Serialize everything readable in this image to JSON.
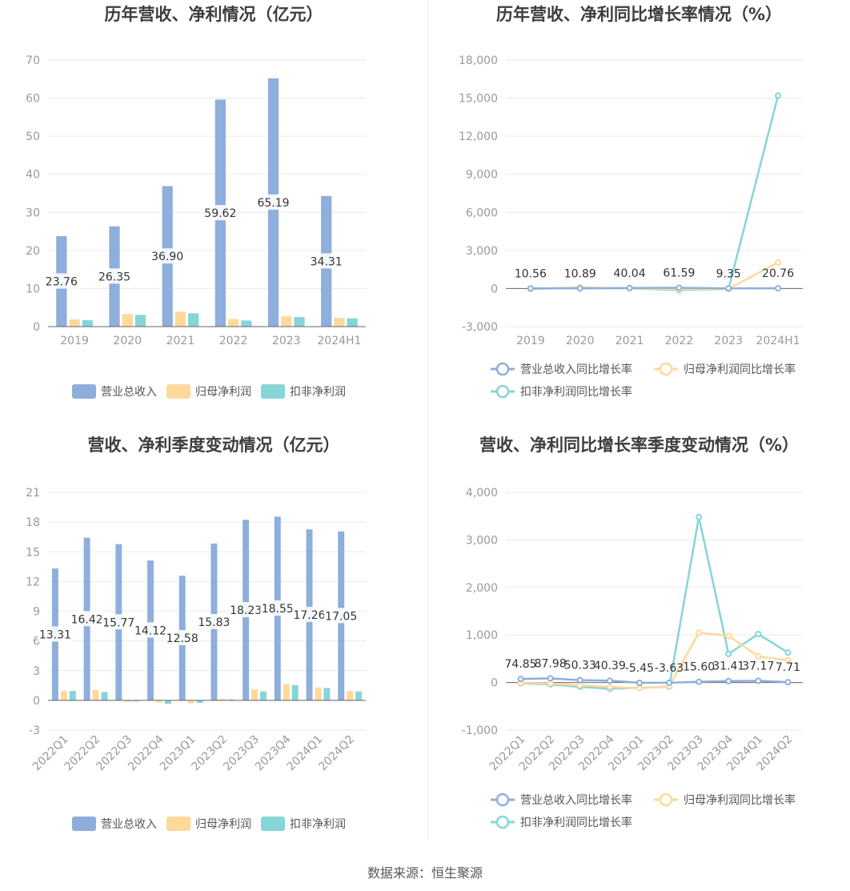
{
  "source": "数据来源：恒生聚源",
  "legend_labels": {
    "revenue": "营业总收入",
    "net_profit": "归母净利润",
    "deducted_profit": "扣非净利润",
    "revenue_growth": "营业总收入同比增长率",
    "net_profit_growth": "归母净利润同比增长率",
    "deducted_profit_growth": "扣非净利润同比增长率"
  },
  "colors": {
    "revenue": "#8eaedc",
    "net_profit": "#ffd99a",
    "deducted_profit": "#86d5d8",
    "revenue_line": "#8eaedc",
    "net_profit_line": "#ffd99a",
    "deducted_line": "#86d5d8"
  },
  "chart_data": [
    {
      "id": "annual-bar",
      "type": "bar",
      "title": "历年营收、净利情况（亿元）",
      "categories": [
        "2019",
        "2020",
        "2021",
        "2022",
        "2023",
        "2024H1"
      ],
      "ylim": [
        0,
        70
      ],
      "yticks": [
        0,
        10,
        20,
        30,
        40,
        50,
        60,
        70
      ],
      "ytick_labels": [
        "0",
        "10",
        "20",
        "30",
        "40",
        "50",
        "60",
        "70"
      ],
      "series": [
        {
          "name": "营业总收入",
          "values": [
            23.76,
            26.35,
            36.9,
            59.62,
            65.19,
            34.31
          ],
          "labels": [
            "23.76",
            "26.35",
            "36.90",
            "59.62",
            "65.19",
            "34.31"
          ]
        },
        {
          "name": "归母净利润",
          "values": [
            1.9,
            3.3,
            3.9,
            2.0,
            2.7,
            2.3
          ]
        },
        {
          "name": "扣非净利润",
          "values": [
            1.7,
            3.1,
            3.5,
            1.6,
            2.5,
            2.2
          ]
        }
      ],
      "legend": "bottom"
    },
    {
      "id": "annual-line",
      "type": "line",
      "title": "历年营收、净利同比增长率情况（%）",
      "categories": [
        "2019",
        "2020",
        "2021",
        "2022",
        "2023",
        "2024H1"
      ],
      "ylim": [
        -3000,
        18000
      ],
      "yticks": [
        -3000,
        0,
        3000,
        6000,
        9000,
        12000,
        15000,
        18000
      ],
      "ytick_labels": [
        "-3,000",
        "0",
        "3,000",
        "6,000",
        "9,000",
        "12,000",
        "15,000",
        "18,000"
      ],
      "series": [
        {
          "name": "营业总收入同比增长率",
          "values": [
            10.56,
            10.89,
            40.04,
            61.59,
            9.35,
            20.76
          ],
          "labels": [
            "10.56",
            "10.89",
            "40.04",
            "61.59",
            "9.35",
            "20.76"
          ]
        },
        {
          "name": "归母净利润同比增长率",
          "values": [
            -20,
            60,
            20,
            -50,
            -20,
            2050
          ]
        },
        {
          "name": "扣非净利润同比增长率",
          "values": [
            -30,
            80,
            10,
            -120,
            -30,
            15200
          ]
        }
      ],
      "legend": "bottom"
    },
    {
      "id": "quarter-bar",
      "type": "bar",
      "title": "营收、净利季度变动情况（亿元）",
      "categories": [
        "2022Q1",
        "2022Q2",
        "2022Q3",
        "2022Q4",
        "2023Q1",
        "2023Q2",
        "2023Q3",
        "2023Q4",
        "2024Q1",
        "2024Q2"
      ],
      "ylim": [
        -3,
        21
      ],
      "yticks": [
        -3,
        0,
        3,
        6,
        9,
        12,
        15,
        18,
        21
      ],
      "ytick_labels": [
        "-3",
        "0",
        "3",
        "6",
        "9",
        "12",
        "15",
        "18",
        "21"
      ],
      "series": [
        {
          "name": "营业总收入",
          "values": [
            13.31,
            16.42,
            15.77,
            14.12,
            12.58,
            15.83,
            18.23,
            18.55,
            17.26,
            17.05
          ],
          "labels": [
            "13.31",
            "16.42",
            "15.77",
            "14.12",
            "12.58",
            "15.83",
            "18.23",
            "18.55",
            "17.26",
            "17.05"
          ]
        },
        {
          "name": "归母净利润",
          "values": [
            0.95,
            1.05,
            -0.15,
            -0.2,
            -0.3,
            0.15,
            1.1,
            1.65,
            1.3,
            0.95
          ]
        },
        {
          "name": "扣非净利润",
          "values": [
            0.95,
            0.85,
            -0.1,
            -0.35,
            -0.25,
            0.1,
            0.9,
            1.55,
            1.25,
            0.9
          ]
        }
      ],
      "legend": "bottom"
    },
    {
      "id": "quarter-line",
      "type": "line",
      "title": "营收、净利同比增长率季度变动情况（%）",
      "categories": [
        "2022Q1",
        "2022Q2",
        "2022Q3",
        "2022Q4",
        "2023Q1",
        "2023Q2",
        "2023Q3",
        "2023Q4",
        "2024Q1",
        "2024Q2"
      ],
      "ylim": [
        -1000,
        4000
      ],
      "yticks": [
        -1000,
        0,
        1000,
        2000,
        3000,
        4000
      ],
      "ytick_labels": [
        "-1,000",
        "0",
        "1,000",
        "2,000",
        "3,000",
        "4,000"
      ],
      "series": [
        {
          "name": "营业总收入同比增长率",
          "values": [
            74.85,
            87.98,
            50.33,
            40.39,
            -5.45,
            -3.63,
            15.6,
            31.41,
            37.17,
            7.71
          ],
          "labels": [
            "74.85",
            "87.98",
            "50.33",
            "40.39",
            "-5.45",
            "-3.63",
            "15.60",
            "31.41",
            "37.17",
            "7.71"
          ]
        },
        {
          "name": "归母净利润同比增长率",
          "values": [
            -10,
            -20,
            -60,
            -90,
            -120,
            -80,
            1050,
            980,
            550,
            470
          ]
        },
        {
          "name": "扣非净利润同比增长率",
          "values": [
            -20,
            -40,
            -90,
            -130,
            -110,
            -90,
            3480,
            600,
            1020,
            630
          ]
        }
      ],
      "legend": "bottom"
    }
  ]
}
